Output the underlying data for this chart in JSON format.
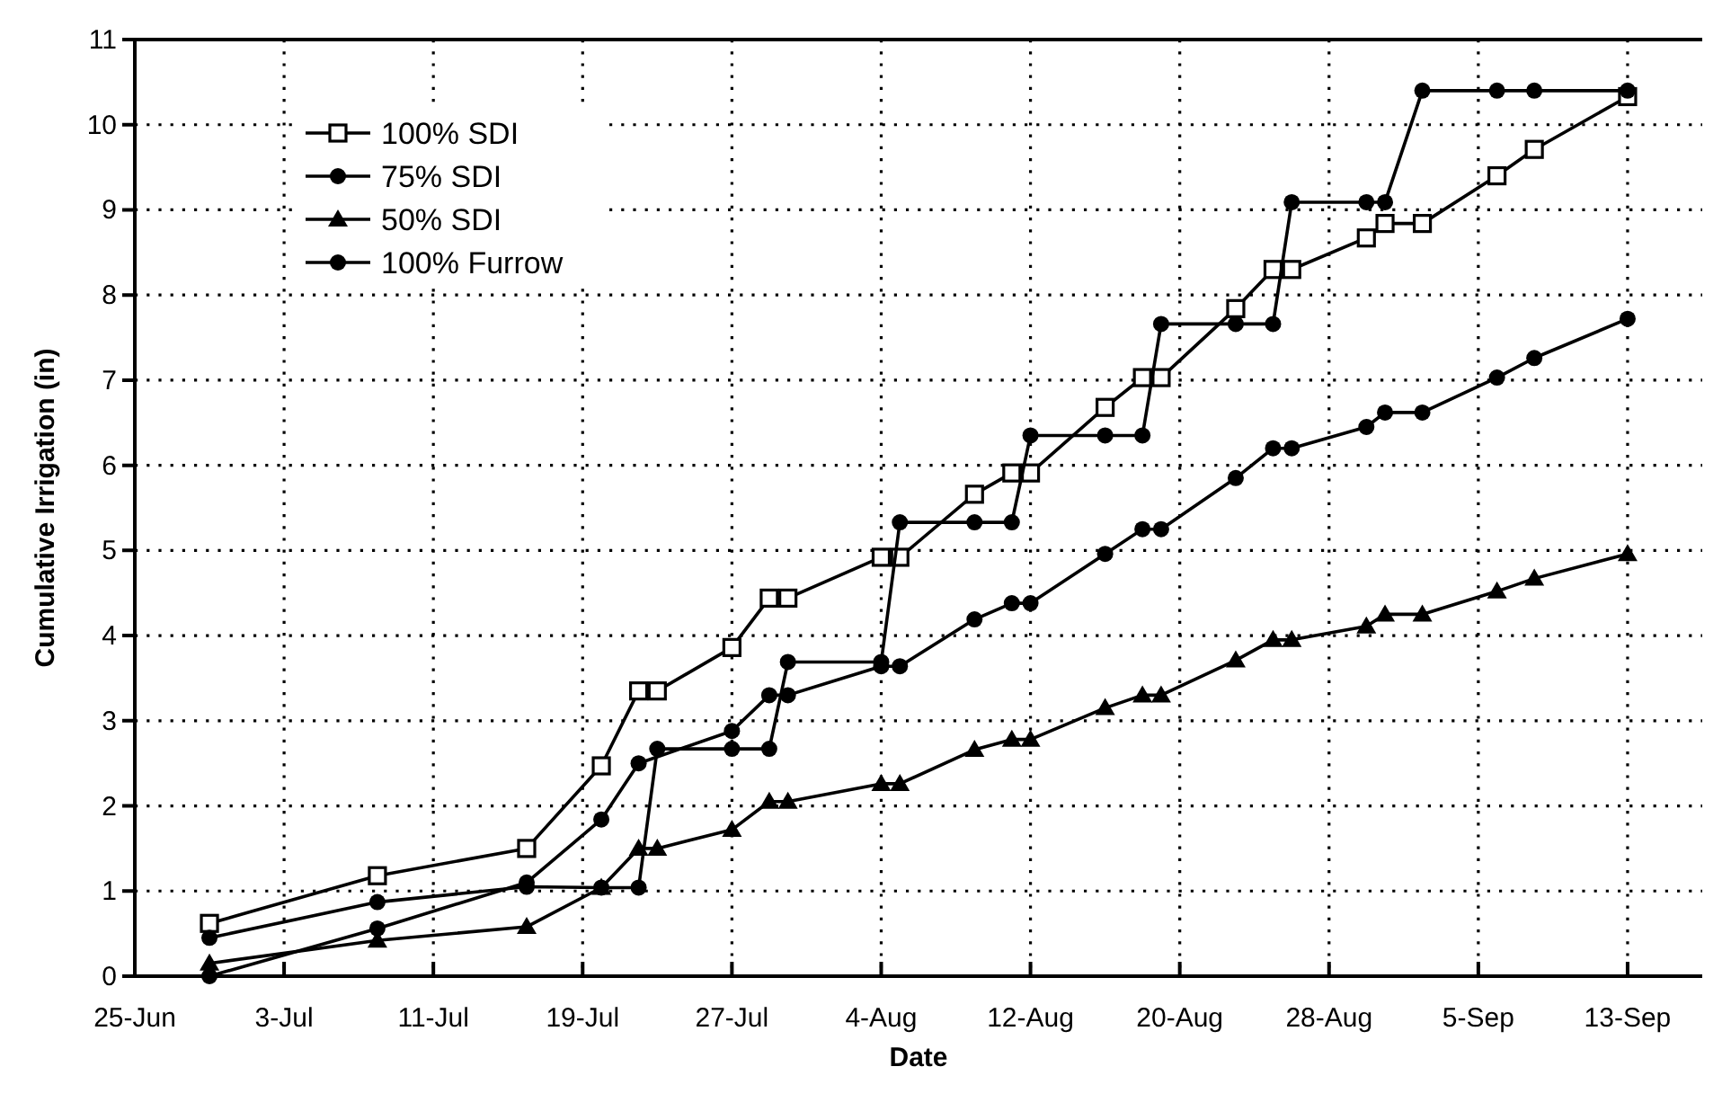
{
  "chart_data": {
    "type": "line",
    "xlabel": "Date",
    "ylabel": "Cumulative Irrigation (in)",
    "xlim": [
      "--06-25",
      "--09-17"
    ],
    "xticks": [
      {
        "value": "--06-25",
        "label": "25-Jun"
      },
      {
        "value": "--07-03",
        "label": "3-Jul"
      },
      {
        "value": "--07-11",
        "label": "11-Jul"
      },
      {
        "value": "--07-19",
        "label": "19-Jul"
      },
      {
        "value": "--07-27",
        "label": "27-Jul"
      },
      {
        "value": "--08-04",
        "label": "4-Aug"
      },
      {
        "value": "--08-12",
        "label": "12-Aug"
      },
      {
        "value": "--08-20",
        "label": "20-Aug"
      },
      {
        "value": "--08-28",
        "label": "28-Aug"
      },
      {
        "value": "--09-05",
        "label": "5-Sep"
      },
      {
        "value": "--09-13",
        "label": "13-Sep"
      }
    ],
    "ylim": [
      0,
      11
    ],
    "yticks": [
      0,
      1,
      2,
      3,
      4,
      5,
      6,
      7,
      8,
      9,
      10,
      11
    ],
    "grid": true,
    "legend": "top left",
    "line_style": "solid",
    "series": [
      {
        "name": "100% SDI",
        "color": "#000000",
        "marker": "square",
        "x": [
          "--06-29",
          "--07-08",
          "--07-16",
          "--07-20",
          "--07-22",
          "--07-23",
          "--07-27",
          "--07-29",
          "--07-30",
          "--08-04",
          "--08-05",
          "--08-09",
          "--08-11",
          "--08-12",
          "--08-16",
          "--08-18",
          "--08-19",
          "--08-23",
          "--08-25",
          "--08-26",
          "--08-30",
          "--08-31",
          "--09-02",
          "--09-06",
          "--09-08",
          "--09-13"
        ],
        "values": [
          0.62,
          1.18,
          1.5,
          2.47,
          3.35,
          3.35,
          3.86,
          4.44,
          4.44,
          4.92,
          4.92,
          5.66,
          5.91,
          5.91,
          6.68,
          7.03,
          7.03,
          7.84,
          8.3,
          8.3,
          8.67,
          8.84,
          8.84,
          9.4,
          9.71,
          10.33
        ]
      },
      {
        "name": "75% SDI",
        "color": "#000000",
        "marker": "circle",
        "x": [
          "--06-29",
          "--07-08",
          "--07-16",
          "--07-20",
          "--07-22",
          "--07-27",
          "--07-29",
          "--07-30",
          "--08-04",
          "--08-05",
          "--08-09",
          "--08-11",
          "--08-12",
          "--08-16",
          "--08-18",
          "--08-19",
          "--08-23",
          "--08-25",
          "--08-26",
          "--08-30",
          "--08-31",
          "--09-02",
          "--09-06",
          "--09-08",
          "--09-13"
        ],
        "values": [
          0,
          0.56,
          1.1,
          1.84,
          2.5,
          2.88,
          3.3,
          3.3,
          3.64,
          3.64,
          4.19,
          4.38,
          4.38,
          4.96,
          5.25,
          5.25,
          5.85,
          6.2,
          6.2,
          6.45,
          6.62,
          6.62,
          7.03,
          7.26,
          7.72
        ]
      },
      {
        "name": "50% SDI",
        "color": "#000000",
        "marker": "triangle",
        "x": [
          "--06-29",
          "--07-08",
          "--07-16",
          "--07-20",
          "--07-22",
          "--07-23",
          "--07-27",
          "--07-29",
          "--07-30",
          "--08-04",
          "--08-05",
          "--08-09",
          "--08-11",
          "--08-12",
          "--08-16",
          "--08-18",
          "--08-19",
          "--08-23",
          "--08-25",
          "--08-26",
          "--08-30",
          "--08-31",
          "--09-02",
          "--09-06",
          "--09-08",
          "--09-13"
        ],
        "values": [
          0.15,
          0.42,
          0.58,
          1.04,
          1.5,
          1.5,
          1.72,
          2.05,
          2.05,
          2.26,
          2.26,
          2.66,
          2.78,
          2.78,
          3.15,
          3.3,
          3.3,
          3.71,
          3.95,
          3.95,
          4.11,
          4.25,
          4.25,
          4.52,
          4.67,
          4.96
        ]
      },
      {
        "name": "100% Furrow",
        "color": "#000000",
        "marker": "circle",
        "x": [
          "--06-29",
          "--07-08",
          "--07-16",
          "--07-20",
          "--07-22",
          "--07-23",
          "--07-27",
          "--07-29",
          "--07-30",
          "--08-04",
          "--08-05",
          "--08-09",
          "--08-11",
          "--08-12",
          "--08-16",
          "--08-18",
          "--08-19",
          "--08-23",
          "--08-25",
          "--08-26",
          "--08-30",
          "--08-31",
          "--09-02",
          "--09-06",
          "--09-08",
          "--09-13"
        ],
        "values": [
          0.45,
          0.87,
          1.05,
          1.04,
          1.04,
          2.67,
          2.67,
          2.67,
          3.69,
          3.69,
          5.33,
          5.33,
          5.33,
          6.35,
          6.35,
          6.35,
          7.66,
          7.66,
          7.66,
          9.09,
          9.09,
          9.09,
          10.4,
          10.4,
          10.4,
          10.4
        ]
      }
    ]
  }
}
